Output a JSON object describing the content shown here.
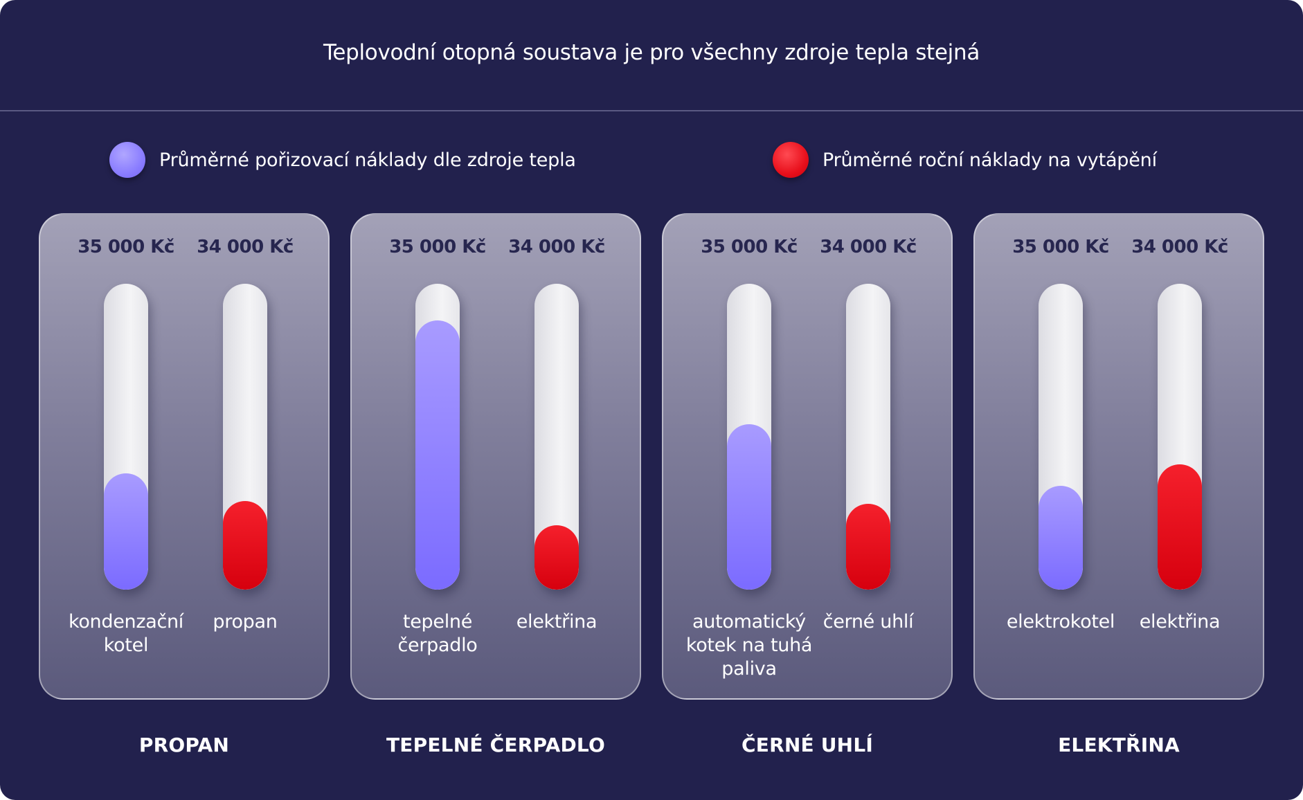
{
  "title": "Teplovodní otopná soustava je pro všechny zdroje tepla stejná",
  "legend": {
    "purchase": {
      "label": "Průměrné pořizovací náklady dle zdroje tepla",
      "color": "#8a7dff"
    },
    "annual": {
      "label": "Průměrné roční náklady na vytápění",
      "color": "#e8101c"
    }
  },
  "chart_data": {
    "type": "bar",
    "title": "Teplovodní otopná soustava je pro všechny zdroje tepla stejná",
    "categories": [
      "PROPAN",
      "TEPELNÉ ČERPADLO",
      "ČERNÉ UHLÍ",
      "ELEKTŘINA"
    ],
    "series": [
      {
        "name": "Průměrné pořizovací náklady dle zdroje tepla",
        "bar_labels": [
          "kondenzační kotel",
          "tepelné čerpadlo",
          "automatický kotek na tuhá paliva",
          "elektrokotel"
        ],
        "value_labels": [
          "35 000 Kč",
          "35 000 Kč",
          "35 000 Kč",
          "35 000 Kč"
        ],
        "fill_fraction": [
          0.38,
          0.88,
          0.54,
          0.34
        ]
      },
      {
        "name": "Průměrné roční náklady na vytápění",
        "bar_labels": [
          "propan",
          "elektřina",
          "černé uhlí",
          "elektřina"
        ],
        "value_labels": [
          "34 000 Kč",
          "34 000 Kč",
          "34 000 Kč",
          "34 000 Kč"
        ],
        "fill_fraction": [
          0.29,
          0.21,
          0.28,
          0.41
        ]
      }
    ],
    "legend": "top"
  }
}
